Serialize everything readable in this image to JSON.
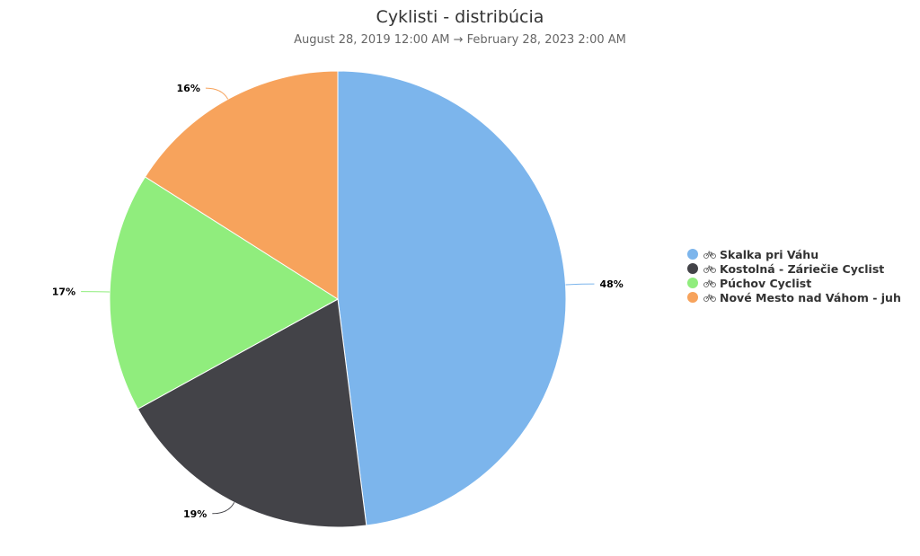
{
  "chart_data": {
    "type": "pie",
    "title": "Cyklisti - distribúcia",
    "subtitle": "August 28, 2019 12:00 AM → February 28, 2023 2:00 AM",
    "legend_position": "right",
    "slices": [
      {
        "label": "Skalka pri Váhu",
        "value": 48,
        "value_label": "48%",
        "color": "#7cb5ec",
        "icon": "bicycle-icon"
      },
      {
        "label": "Kostolná - Záriečie Cyclist",
        "value": 19,
        "value_label": "19%",
        "color": "#434348",
        "icon": "bicycle-icon"
      },
      {
        "label": "Púchov Cyclist",
        "value": 17,
        "value_label": "17%",
        "color": "#90ed7d",
        "icon": "bicycle-icon"
      },
      {
        "label": "Nové Mesto nad Váhom - juh",
        "value": 16,
        "value_label": "16%",
        "color": "#f7a35c",
        "icon": "bicycle-icon"
      }
    ]
  }
}
